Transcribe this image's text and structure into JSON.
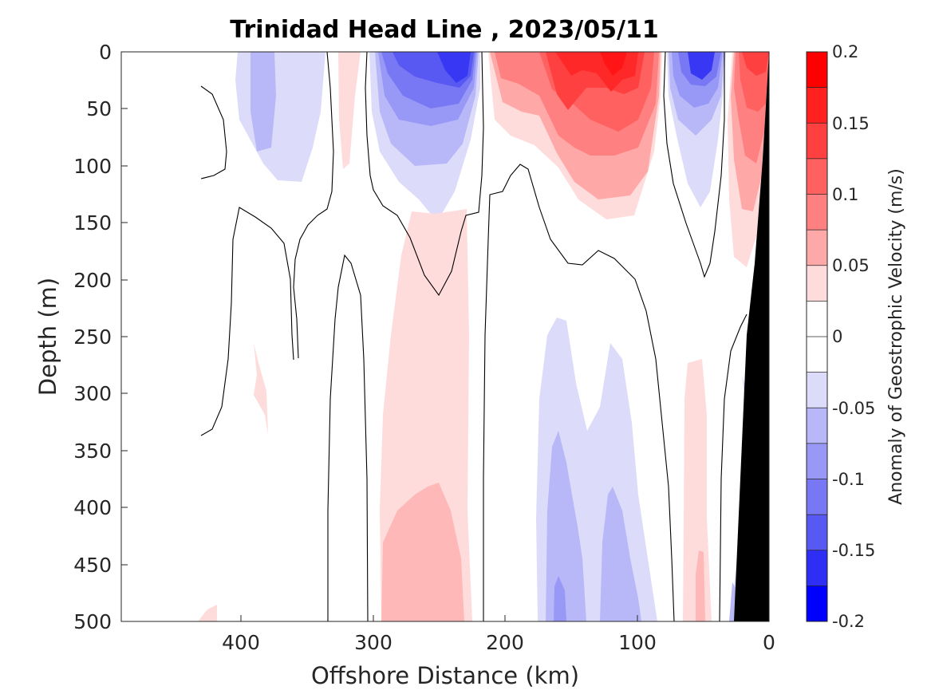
{
  "chart_data": {
    "type": "heatmap",
    "title": "Trinidad Head Line , 2023/05/11",
    "xlabel": "Offshore Distance (km)",
    "ylabel": "Depth (m)",
    "xlim": [
      490,
      0
    ],
    "ylim": [
      0,
      500
    ],
    "x_reversed": true,
    "y_reversed": true,
    "x_ticks": [
      400,
      300,
      200,
      100,
      0
    ],
    "x_tick_labels": [
      "400",
      "300",
      "200",
      "100",
      "0"
    ],
    "y_ticks": [
      0,
      50,
      100,
      150,
      200,
      250,
      300,
      350,
      400,
      450,
      500
    ],
    "y_tick_labels": [
      "0",
      "50",
      "100",
      "150",
      "200",
      "250",
      "300",
      "350",
      "400",
      "450",
      "500"
    ],
    "colorbar": {
      "label": "Anomaly of Geostrophic Velocity (m/s)",
      "range": [
        -0.2,
        0.2
      ],
      "ticks": [
        0.2,
        0.15,
        0.1,
        0.05,
        0,
        -0.05,
        -0.1,
        -0.15,
        -0.2
      ],
      "tick_labels": [
        "0.2",
        "0.15",
        "0.1",
        "0.05",
        "0",
        "-0.05",
        "-0.1",
        "-0.15",
        "-0.2"
      ],
      "levels": 16,
      "colors_top_to_bottom": [
        "#ff0000",
        "#ff2020",
        "#ff4040",
        "#ff6060",
        "#ff8080",
        "#ffa8a8",
        "#ffdcdc",
        "#ffffff",
        "#ffffff",
        "#dcdcfa",
        "#b8b8f8",
        "#9898f6",
        "#7878f4",
        "#5858f2",
        "#2e2ef4",
        "#0000ff"
      ]
    },
    "features": [
      {
        "name": "Negative cell",
        "x": [
          400,
          360
        ],
        "depth": [
          0,
          140
        ],
        "value": -0.05
      },
      {
        "name": "Positive cell",
        "x": [
          328,
          308
        ],
        "depth": [
          0,
          100
        ],
        "value": 0.05
      },
      {
        "name": "Negative eddy",
        "x": [
          300,
          220
        ],
        "depth": [
          0,
          150
        ],
        "value": -0.15
      },
      {
        "name": "Positive jet",
        "x": [
          215,
          175
        ],
        "depth": [
          0,
          90
        ],
        "value": 0.1
      },
      {
        "name": "Positive jet core",
        "x": [
          180,
          100
        ],
        "depth": [
          0,
          150
        ],
        "value": 0.15
      },
      {
        "name": "Negative cell",
        "x": [
          70,
          40
        ],
        "depth": [
          0,
          130
        ],
        "value": -0.15
      },
      {
        "name": "Positive nearshore",
        "x": [
          30,
          0
        ],
        "depth": [
          0,
          190
        ],
        "value": 0.1
      },
      {
        "name": "Positive deep",
        "x": [
          295,
          225
        ],
        "depth": [
          265,
          500
        ],
        "value": 0.05
      },
      {
        "name": "Negative deep",
        "x": [
          175,
          100
        ],
        "depth": [
          240,
          500
        ],
        "value": -0.1
      },
      {
        "name": "Positive deep nearshore",
        "x": [
          70,
          50
        ],
        "depth": [
          250,
          500
        ],
        "value": 0.05
      },
      {
        "name": "Small positive patch",
        "x": [
          395,
          380
        ],
        "depth": [
          250,
          335
        ],
        "value": 0.05
      }
    ],
    "bathymetry": {
      "color": "#000000",
      "x": [
        0,
        8,
        14,
        20,
        25
      ],
      "bottom_depth": [
        0,
        90,
        200,
        400,
        500
      ]
    },
    "grid": false,
    "legend": "colorbar right"
  }
}
